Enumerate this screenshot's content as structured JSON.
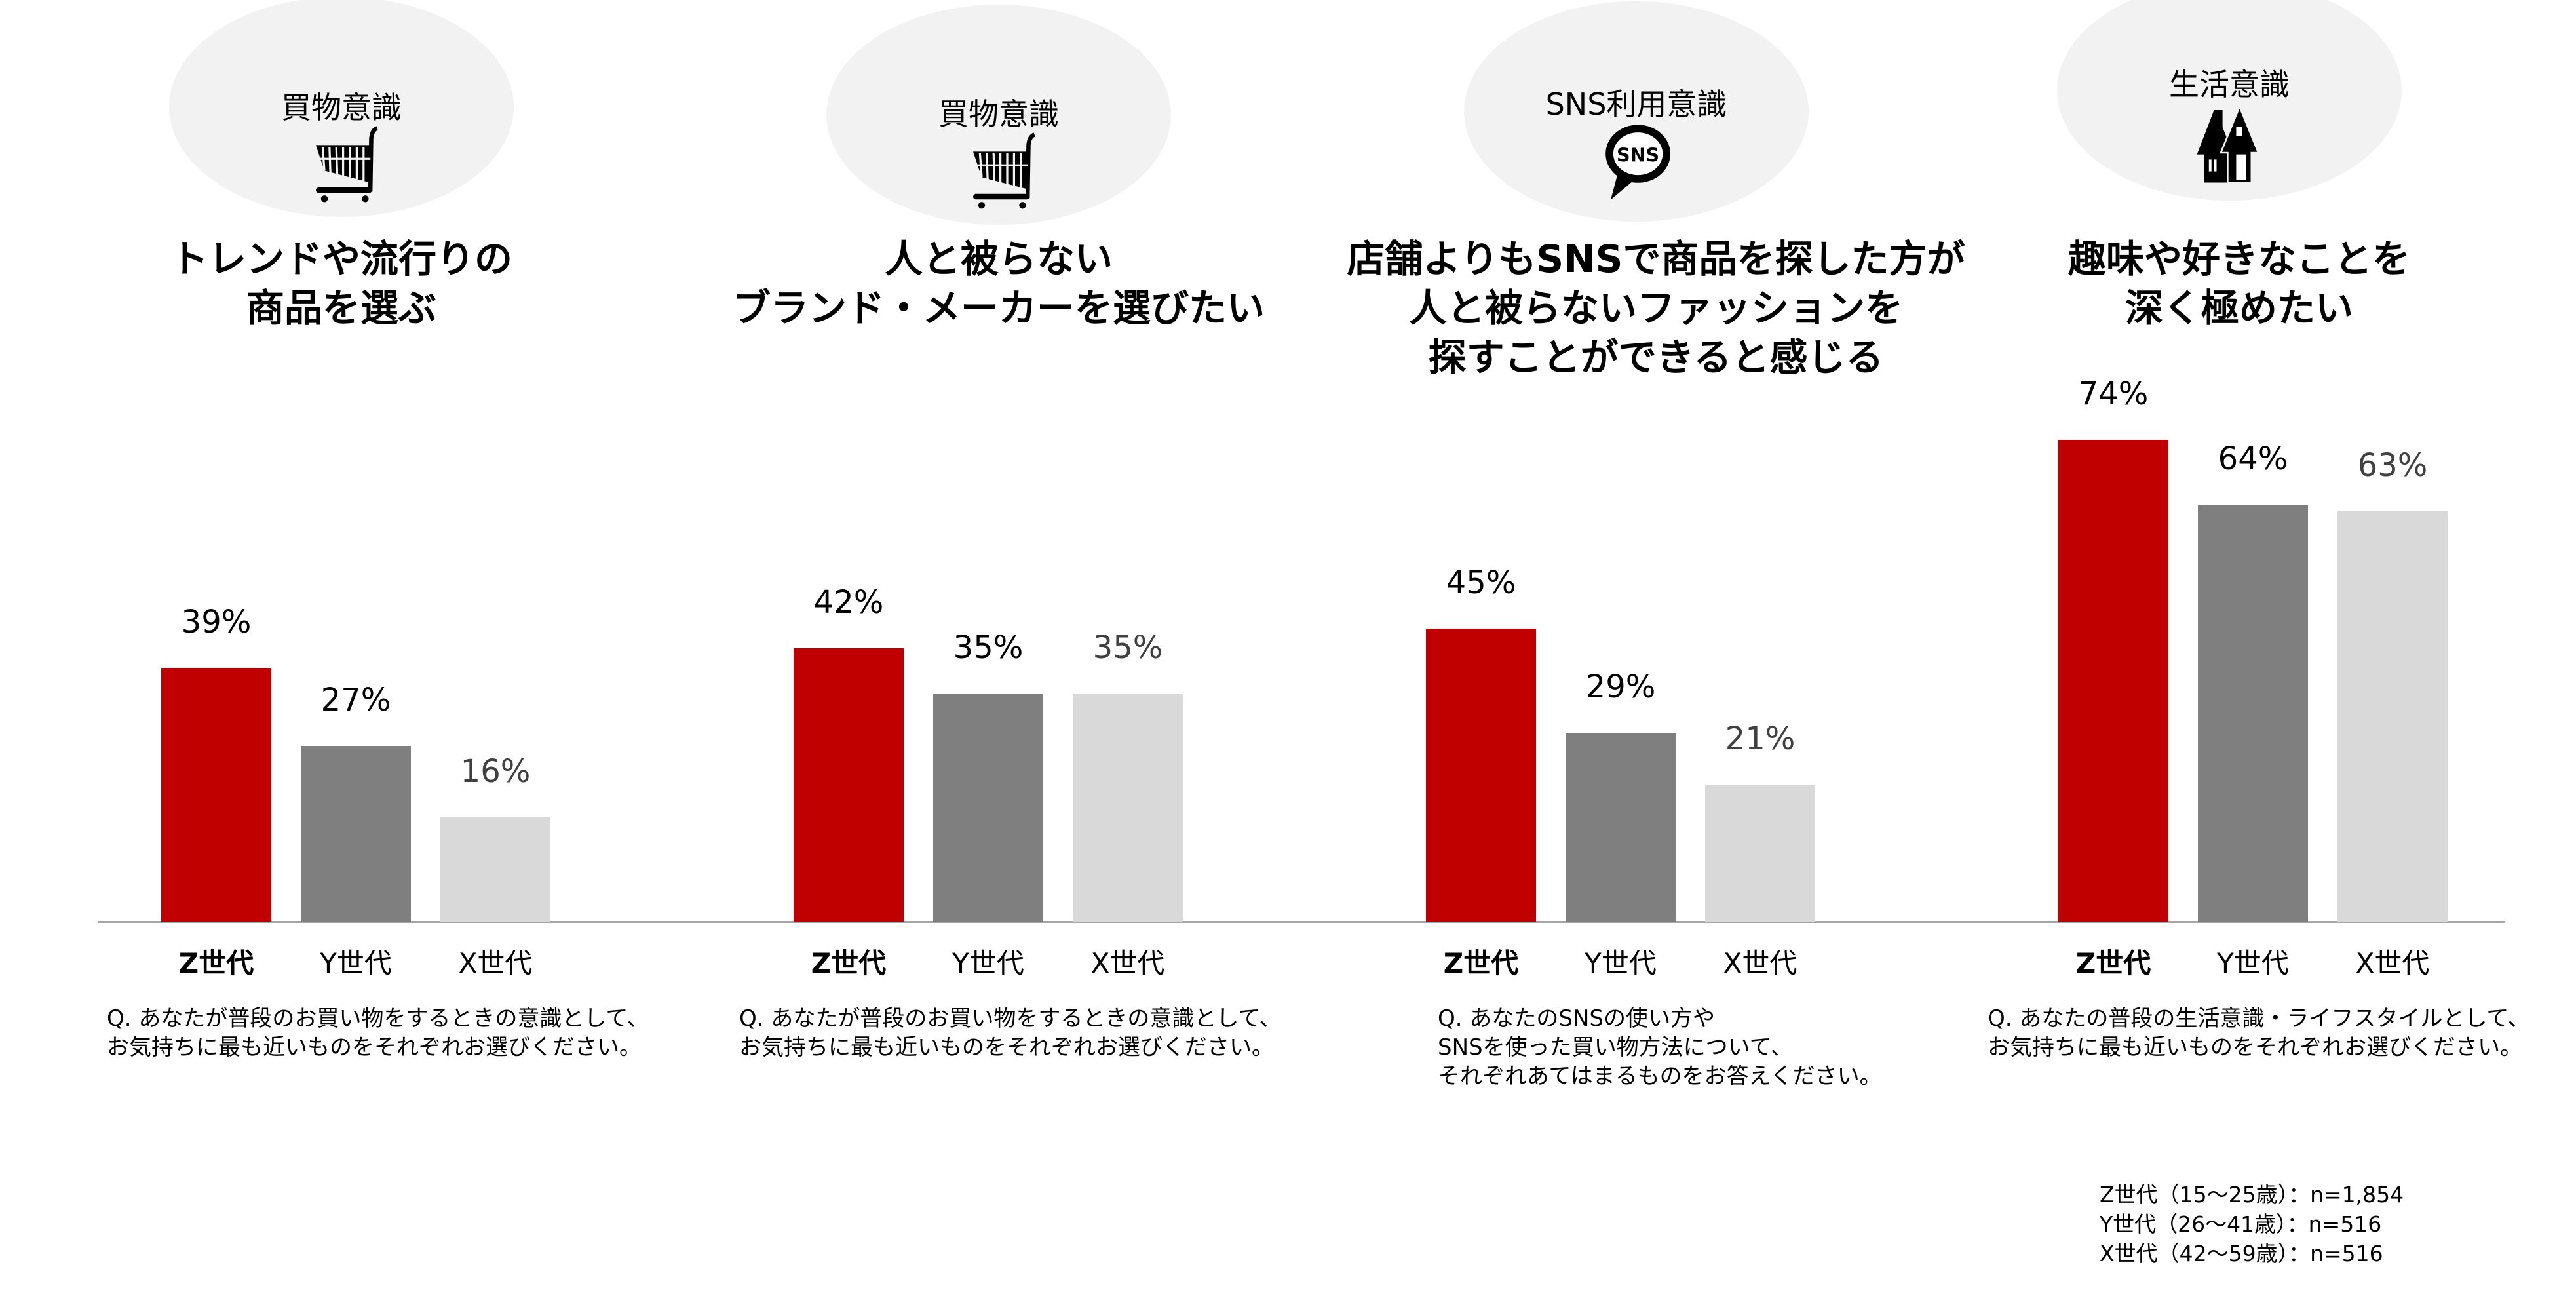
{
  "colors": {
    "z": "#C00000",
    "y": "#7F7F7F",
    "x": "#D9D9D9"
  },
  "chart_data": {
    "type": "bar",
    "categories": [
      "Z世代",
      "Y世代",
      "X世代"
    ],
    "ylim": [
      0,
      100
    ],
    "panels": [
      {
        "tag": "買物意識",
        "icon": "shopping-cart-icon",
        "title": [
          "トレンドや流行りの",
          "商品を選ぶ"
        ],
        "values": [
          39,
          27,
          16
        ],
        "labels": [
          "39%",
          "27%",
          "16%"
        ],
        "question": [
          "Q. あなたが普段のお買い物をするときの意識として、",
          "お気持ちに最も近いものをそれぞれお選びください。"
        ]
      },
      {
        "tag": "買物意識",
        "icon": "shopping-cart-icon",
        "title": [
          "人と被らない",
          "ブランド・メーカーを選びたい"
        ],
        "values": [
          42,
          35,
          35
        ],
        "labels": [
          "42%",
          "35%",
          "35%"
        ],
        "question": [
          "Q. あなたが普段のお買い物をするときの意識として、",
          "お気持ちに最も近いものをそれぞれお選びください。"
        ]
      },
      {
        "tag": "SNS利用意識",
        "icon": "sns-speech-bubble-icon",
        "icon_text": "SNS",
        "title": [
          "店舗よりもSNSで商品を探した方が",
          "人と被らないファッションを",
          "探すことができると感じる"
        ],
        "values": [
          45,
          29,
          21
        ],
        "labels": [
          "45%",
          "29%",
          "21%"
        ],
        "question": [
          "Q. あなたのSNSの使い方や",
          "SNSを使った買い物方法について、",
          "それぞれあてはまるものをお答えください。"
        ]
      },
      {
        "tag": "生活意識",
        "icon": "houses-icon",
        "title": [
          "趣味や好きなことを",
          "深く極めたい"
        ],
        "values": [
          74,
          64,
          63
        ],
        "labels": [
          "74%",
          "64%",
          "63%"
        ],
        "question": [
          "Q. あなたの普段の生活意識・ライフスタイルとして、",
          "お気持ちに最も近いものをそれぞれお選びください。"
        ]
      }
    ]
  },
  "footnote": [
    "Z世代（15〜25歳）：n=1,854",
    "Y世代（26〜41歳）：n=516",
    "X世代（42〜59歳）：n=516"
  ]
}
